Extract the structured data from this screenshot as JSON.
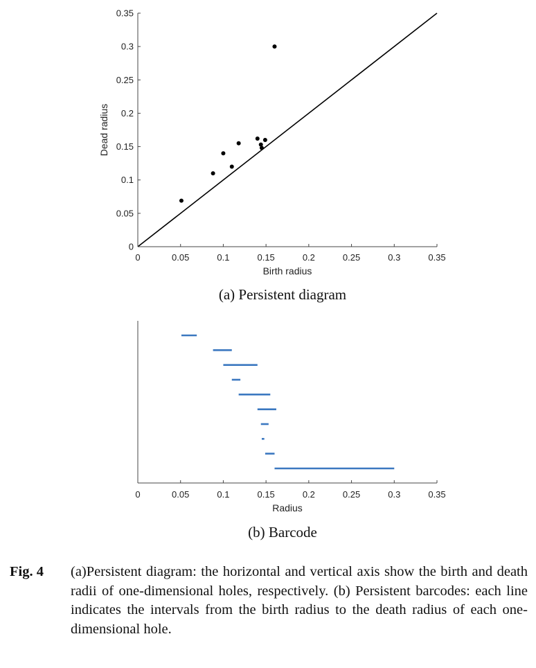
{
  "chart_data": [
    {
      "type": "scatter",
      "name": "persistent-diagram",
      "xlabel": "Birth radius",
      "ylabel": "Dead radius",
      "xlim": [
        0,
        0.35
      ],
      "ylim": [
        0,
        0.35
      ],
      "xticks": [
        "0",
        "0.05",
        "0.1",
        "0.15",
        "0.2",
        "0.25",
        "0.3",
        "0.35"
      ],
      "yticks": [
        "0",
        "0.05",
        "0.1",
        "0.15",
        "0.2",
        "0.25",
        "0.3",
        "0.35"
      ],
      "diagonal": true,
      "marker_color": "#000000",
      "points": [
        {
          "x": 0.051,
          "y": 0.069
        },
        {
          "x": 0.088,
          "y": 0.11
        },
        {
          "x": 0.1,
          "y": 0.14
        },
        {
          "x": 0.11,
          "y": 0.12
        },
        {
          "x": 0.118,
          "y": 0.155
        },
        {
          "x": 0.14,
          "y": 0.162
        },
        {
          "x": 0.144,
          "y": 0.153
        },
        {
          "x": 0.145,
          "y": 0.148
        },
        {
          "x": 0.149,
          "y": 0.16
        },
        {
          "x": 0.16,
          "y": 0.3
        }
      ],
      "caption": "(a) Persistent diagram"
    },
    {
      "type": "barcode",
      "name": "barcode",
      "xlabel": "Radius",
      "xlim": [
        0,
        0.35
      ],
      "xticks": [
        "0",
        "0.05",
        "0.1",
        "0.15",
        "0.2",
        "0.25",
        "0.3",
        "0.35"
      ],
      "bar_color": "#3b78c0",
      "intervals": [
        {
          "birth": 0.051,
          "death": 0.069
        },
        {
          "birth": 0.088,
          "death": 0.11
        },
        {
          "birth": 0.1,
          "death": 0.14
        },
        {
          "birth": 0.11,
          "death": 0.12
        },
        {
          "birth": 0.118,
          "death": 0.155
        },
        {
          "birth": 0.14,
          "death": 0.162
        },
        {
          "birth": 0.144,
          "death": 0.153
        },
        {
          "birth": 0.145,
          "death": 0.148
        },
        {
          "birth": 0.149,
          "death": 0.16
        },
        {
          "birth": 0.16,
          "death": 0.3
        }
      ],
      "caption": "(b) Barcode"
    }
  ],
  "figure_caption": {
    "label": "Fig. 4",
    "text": "(a)Persistent diagram: the horizontal and vertical axis show the birth and death radii of one-dimensional holes, respectively. (b) Persistent barcodes: each line indicates the intervals from the birth radius to the death radius of each one-dimensional hole."
  }
}
